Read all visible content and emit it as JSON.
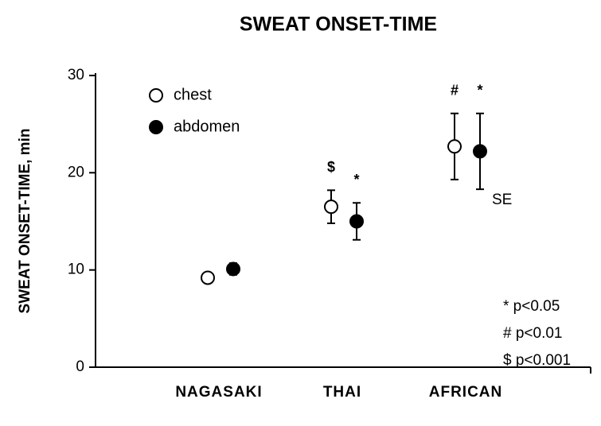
{
  "chart_data": {
    "type": "errorbar",
    "title": "SWEAT ONSET-TIME",
    "y_label": "SWEAT ONSET-TIME, min",
    "categories": [
      "NAGASAKI",
      "THAI",
      "AFRICAN"
    ],
    "series": [
      {
        "name": "chest",
        "color": "#ffffff",
        "values": [
          9.2,
          16.5,
          22.7
        ],
        "errors": [
          0,
          1.7,
          3.4
        ],
        "marks": [
          null,
          "$",
          "#"
        ]
      },
      {
        "name": "abdomen",
        "color": "#000000",
        "values": [
          10.1,
          15.0,
          22.2
        ],
        "errors": [
          0.6,
          1.9,
          3.9
        ],
        "marks": [
          null,
          "*",
          "*"
        ]
      }
    ],
    "error_label": "SE",
    "notes": [
      "* p<0.05",
      "# p<0.01",
      "$ p<0.001"
    ],
    "ylim": [
      0,
      30
    ],
    "yticks": [
      0,
      10,
      20,
      30
    ],
    "legend": "upper left"
  }
}
